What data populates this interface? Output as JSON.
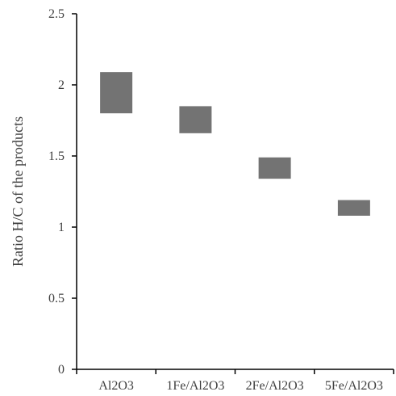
{
  "chart_data": {
    "type": "bar",
    "subtype": "floating-range",
    "categories": [
      "Al2O3",
      "1Fe/Al2O3",
      "2Fe/Al2O3",
      "5Fe/Al2O3"
    ],
    "series": [
      {
        "low": [
          1.8,
          1.66,
          1.34,
          1.08
        ],
        "high": [
          2.09,
          1.85,
          1.49,
          1.19
        ]
      }
    ],
    "ylabel": "Ratio H/C of the products",
    "xlabel": "",
    "ylim": [
      0,
      2.5
    ],
    "yticks": [
      0,
      0.5,
      1,
      1.5,
      2,
      2.5
    ],
    "ytick_labels": [
      "0",
      "0.5",
      "1",
      "1.5",
      "2",
      "2.5"
    ],
    "grid": false,
    "legend": "none",
    "bar_color": "#737373"
  }
}
